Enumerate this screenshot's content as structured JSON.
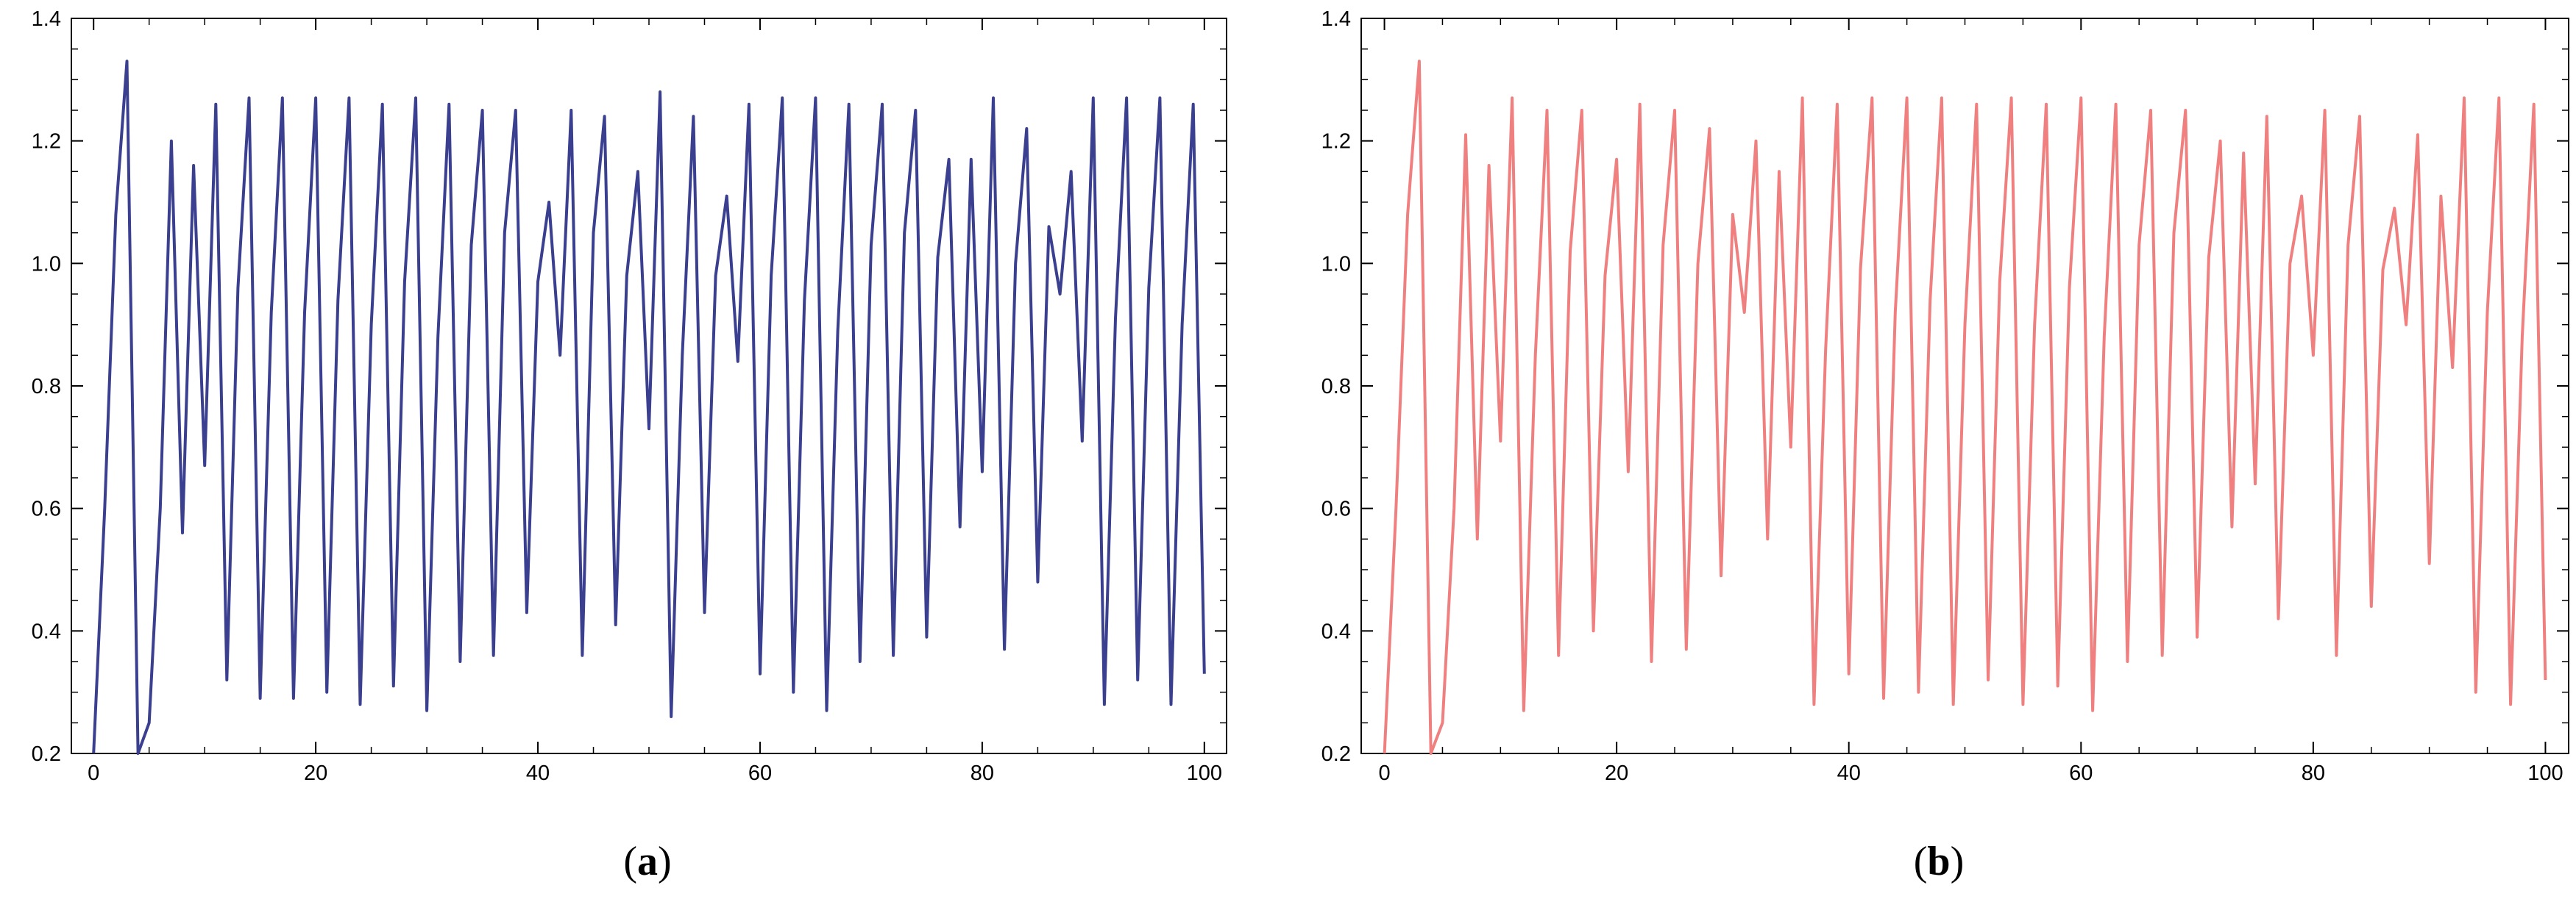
{
  "figure": {
    "panels": [
      {
        "label_open": "(",
        "label_letter": "a",
        "label_close": ")"
      },
      {
        "label_open": "(",
        "label_letter": "b",
        "label_close": ")"
      }
    ]
  },
  "chart_data": [
    {
      "type": "line",
      "panel": "a",
      "title": "",
      "xlabel": "",
      "ylabel": "",
      "xlim": [
        -2,
        102
      ],
      "ylim": [
        0.2,
        1.4
      ],
      "xticks": [
        0,
        20,
        40,
        60,
        80,
        100
      ],
      "yticks": [
        0.2,
        0.4,
        0.6,
        0.8,
        1.0,
        1.2,
        1.4
      ],
      "xtick_labels": [
        "0",
        "20",
        "40",
        "60",
        "80",
        "100"
      ],
      "ytick_labels": [
        "0.2",
        "0.4",
        "0.6",
        "0.8",
        "1.0",
        "1.2",
        "1.4"
      ],
      "grid": false,
      "color": "#3a3f8f",
      "x": [
        0,
        1,
        2,
        3,
        4,
        5,
        6,
        7,
        8,
        9,
        10,
        11,
        12,
        13,
        14,
        15,
        16,
        17,
        18,
        19,
        20,
        21,
        22,
        23,
        24,
        25,
        26,
        27,
        28,
        29,
        30,
        31,
        32,
        33,
        34,
        35,
        36,
        37,
        38,
        39,
        40,
        41,
        42,
        43,
        44,
        45,
        46,
        47,
        48,
        49,
        50,
        51,
        52,
        53,
        54,
        55,
        56,
        57,
        58,
        59,
        60,
        61,
        62,
        63,
        64,
        65,
        66,
        67,
        68,
        69,
        70,
        71,
        72,
        73,
        74,
        75,
        76,
        77,
        78,
        79,
        80,
        81,
        82,
        83,
        84,
        85,
        86,
        87,
        88,
        89,
        90,
        91,
        92,
        93,
        94,
        95,
        96,
        97,
        98,
        99,
        100
      ],
      "values": [
        0.2,
        0.6,
        1.08,
        1.33,
        0.2,
        0.25,
        0.6,
        1.2,
        0.56,
        1.16,
        0.67,
        1.26,
        0.32,
        0.96,
        1.27,
        0.29,
        0.92,
        1.27,
        0.29,
        0.92,
        1.27,
        0.3,
        0.94,
        1.27,
        0.28,
        0.9,
        1.26,
        0.31,
        0.97,
        1.27,
        0.27,
        0.88,
        1.26,
        0.35,
        1.03,
        1.25,
        0.36,
        1.05,
        1.25,
        0.43,
        0.97,
        1.1,
        0.85,
        1.25,
        0.36,
        1.05,
        1.24,
        0.41,
        0.98,
        1.15,
        0.73,
        1.28,
        0.26,
        0.85,
        1.24,
        0.43,
        0.98,
        1.11,
        0.84,
        1.26,
        0.33,
        0.98,
        1.27,
        0.3,
        0.94,
        1.27,
        0.27,
        0.89,
        1.26,
        0.35,
        1.03,
        1.26,
        0.36,
        1.05,
        1.25,
        0.39,
        1.01,
        1.17,
        0.57,
        1.17,
        0.66,
        1.27,
        0.37,
        1.0,
        1.22,
        0.48,
        1.06,
        0.95,
        1.15,
        0.71,
        1.27,
        0.28,
        0.91,
        1.27,
        0.32,
        0.96,
        1.27,
        0.28,
        0.9,
        1.26,
        0.33
      ]
    },
    {
      "type": "line",
      "panel": "b",
      "title": "",
      "xlabel": "",
      "ylabel": "",
      "xlim": [
        -2,
        102
      ],
      "ylim": [
        0.2,
        1.4
      ],
      "xticks": [
        0,
        20,
        40,
        60,
        80,
        100
      ],
      "yticks": [
        0.2,
        0.4,
        0.6,
        0.8,
        1.0,
        1.2,
        1.4
      ],
      "xtick_labels": [
        "0",
        "20",
        "40",
        "60",
        "80",
        "100"
      ],
      "ytick_labels": [
        "0.2",
        "0.4",
        "0.6",
        "0.8",
        "1.0",
        "1.2",
        "1.4"
      ],
      "grid": false,
      "color": "#f08080",
      "x": [
        0,
        1,
        2,
        3,
        4,
        5,
        6,
        7,
        8,
        9,
        10,
        11,
        12,
        13,
        14,
        15,
        16,
        17,
        18,
        19,
        20,
        21,
        22,
        23,
        24,
        25,
        26,
        27,
        28,
        29,
        30,
        31,
        32,
        33,
        34,
        35,
        36,
        37,
        38,
        39,
        40,
        41,
        42,
        43,
        44,
        45,
        46,
        47,
        48,
        49,
        50,
        51,
        52,
        53,
        54,
        55,
        56,
        57,
        58,
        59,
        60,
        61,
        62,
        63,
        64,
        65,
        66,
        67,
        68,
        69,
        70,
        71,
        72,
        73,
        74,
        75,
        76,
        77,
        78,
        79,
        80,
        81,
        82,
        83,
        84,
        85,
        86,
        87,
        88,
        89,
        90,
        91,
        92,
        93,
        94,
        95,
        96,
        97,
        98,
        99,
        100
      ],
      "values": [
        0.2,
        0.6,
        1.08,
        1.33,
        0.2,
        0.25,
        0.6,
        1.21,
        0.55,
        1.16,
        0.71,
        1.27,
        0.27,
        0.85,
        1.25,
        0.36,
        1.02,
        1.25,
        0.4,
        0.98,
        1.17,
        0.66,
        1.26,
        0.35,
        1.03,
        1.25,
        0.37,
        1.0,
        1.22,
        0.49,
        1.08,
        0.92,
        1.2,
        0.55,
        1.15,
        0.7,
        1.27,
        0.28,
        0.86,
        1.26,
        0.33,
        0.99,
        1.27,
        0.29,
        0.92,
        1.27,
        0.3,
        0.94,
        1.27,
        0.28,
        0.9,
        1.26,
        0.32,
        0.97,
        1.27,
        0.28,
        0.9,
        1.26,
        0.31,
        0.96,
        1.27,
        0.27,
        0.88,
        1.26,
        0.35,
        1.03,
        1.25,
        0.36,
        1.05,
        1.25,
        0.39,
        1.01,
        1.2,
        0.57,
        1.18,
        0.64,
        1.24,
        0.42,
        1.0,
        1.11,
        0.85,
        1.25,
        0.36,
        1.03,
        1.24,
        0.44,
        0.99,
        1.09,
        0.9,
        1.21,
        0.51,
        1.11,
        0.83,
        1.27,
        0.3,
        0.92,
        1.27,
        0.28,
        0.88,
        1.26,
        0.32
      ]
    }
  ]
}
